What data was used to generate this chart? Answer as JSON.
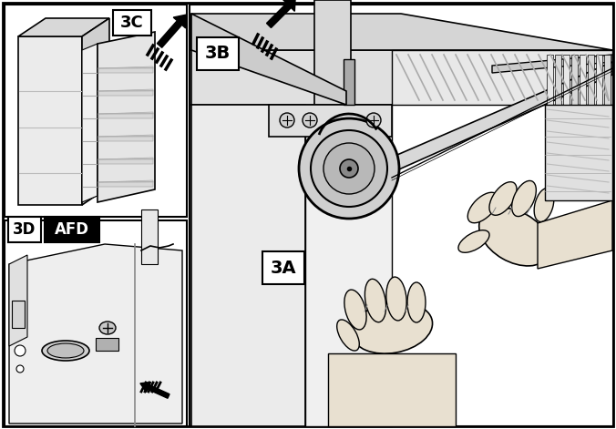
{
  "bg_color": "#ffffff",
  "border_color": "#000000",
  "label_3C": "3C",
  "label_3B": "3B",
  "label_3A": "3A",
  "label_3D": "3D",
  "label_AFD": "AFD",
  "figsize": [
    6.76,
    4.71
  ],
  "dpi": 100,
  "white": "#ffffff",
  "black": "#000000",
  "light_gray": "#e8e8e8",
  "mid_gray": "#c8c8c8",
  "dark_gray": "#888888",
  "very_light": "#f2f2f2",
  "stripe_gray": "#999999"
}
